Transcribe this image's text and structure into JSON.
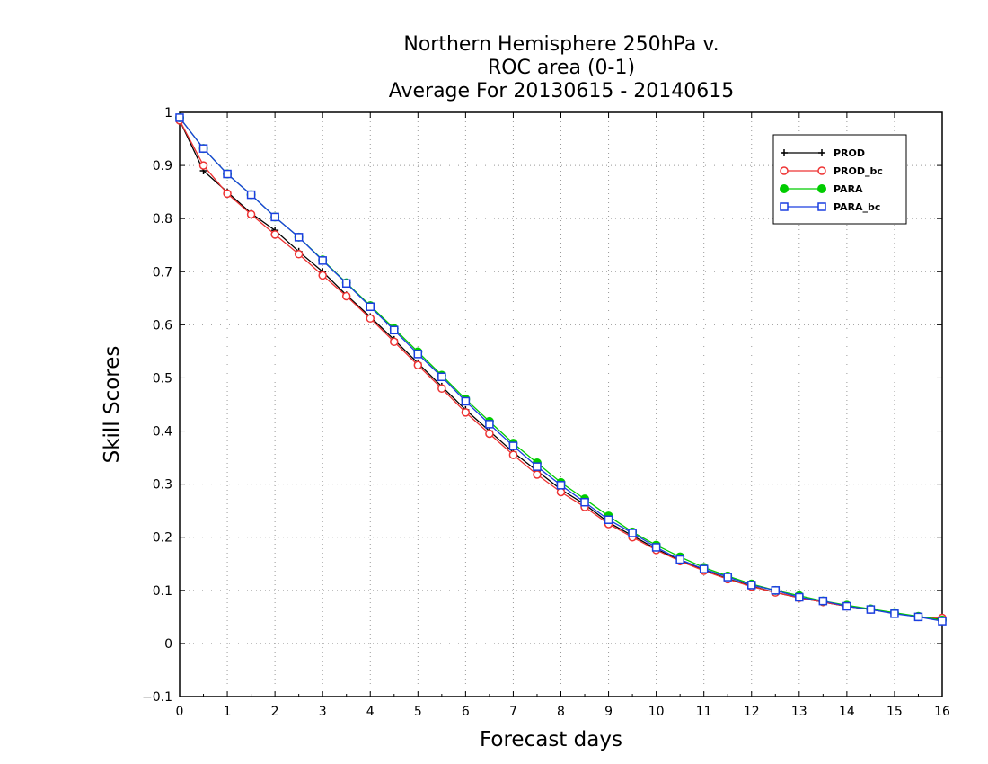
{
  "chart_data": {
    "type": "line",
    "title_lines": [
      "Northern Hemisphere 250hPa v.",
      "ROC area (0-1)",
      "Average For 20130615 - 20140615"
    ],
    "xlabel": "Forecast days",
    "ylabel": "Skill Scores",
    "xlim": [
      0,
      16
    ],
    "ylim": [
      -0.1,
      1
    ],
    "xticks": [
      0,
      1,
      2,
      3,
      4,
      5,
      6,
      7,
      8,
      9,
      10,
      11,
      12,
      13,
      14,
      15,
      16
    ],
    "yticks": [
      -0.1,
      0,
      0.1,
      0.2,
      0.3,
      0.4,
      0.5,
      0.6,
      0.7,
      0.8,
      0.9,
      1
    ],
    "ytick_labels": [
      "−0.1",
      "0",
      "0.1",
      "0.2",
      "0.3",
      "0.4",
      "0.5",
      "0.6",
      "0.7",
      "0.8",
      "0.9",
      "1"
    ],
    "grid": true,
    "legend_position": "top-right",
    "x": [
      0,
      0.5,
      1,
      1.5,
      2,
      2.5,
      3,
      3.5,
      4,
      4.5,
      5,
      5.5,
      6,
      6.5,
      7,
      7.5,
      8,
      8.5,
      9,
      9.5,
      10,
      10.5,
      11,
      11.5,
      12,
      12.5,
      13,
      13.5,
      14,
      14.5,
      15,
      15.5,
      16
    ],
    "series": [
      {
        "name": "PROD",
        "color": "#000000",
        "marker": "plus",
        "values": [
          0.985,
          0.89,
          0.85,
          0.81,
          0.778,
          0.738,
          0.7,
          0.656,
          0.615,
          0.572,
          0.528,
          0.484,
          0.44,
          0.4,
          0.36,
          0.325,
          0.29,
          0.262,
          0.228,
          0.203,
          0.178,
          0.156,
          0.138,
          0.122,
          0.108,
          0.096,
          0.086,
          0.078,
          0.07,
          0.064,
          0.057,
          0.05,
          0.045
        ]
      },
      {
        "name": "PROD_bc",
        "color": "#ee3333",
        "marker": "circle",
        "values": [
          0.985,
          0.9,
          0.847,
          0.808,
          0.77,
          0.733,
          0.693,
          0.654,
          0.612,
          0.568,
          0.524,
          0.48,
          0.435,
          0.395,
          0.355,
          0.318,
          0.285,
          0.257,
          0.225,
          0.2,
          0.176,
          0.155,
          0.137,
          0.121,
          0.107,
          0.096,
          0.086,
          0.078,
          0.07,
          0.064,
          0.057,
          0.05,
          0.048
        ]
      },
      {
        "name": "PARA",
        "color": "#00cc00",
        "marker": "dot",
        "values": [
          0.99,
          0.932,
          0.884,
          0.845,
          0.803,
          0.765,
          0.722,
          0.679,
          0.636,
          0.593,
          0.549,
          0.505,
          0.46,
          0.418,
          0.377,
          0.34,
          0.303,
          0.272,
          0.24,
          0.21,
          0.185,
          0.163,
          0.143,
          0.127,
          0.112,
          0.1,
          0.09,
          0.08,
          0.072,
          0.065,
          0.058,
          0.051,
          0.044
        ]
      },
      {
        "name": "PARA_bc",
        "color": "#1a3fe0",
        "marker": "square",
        "values": [
          0.99,
          0.932,
          0.884,
          0.845,
          0.803,
          0.765,
          0.721,
          0.678,
          0.634,
          0.59,
          0.545,
          0.502,
          0.456,
          0.413,
          0.372,
          0.333,
          0.298,
          0.266,
          0.233,
          0.208,
          0.181,
          0.158,
          0.14,
          0.125,
          0.11,
          0.1,
          0.087,
          0.08,
          0.07,
          0.064,
          0.056,
          0.05,
          0.042
        ]
      }
    ]
  }
}
